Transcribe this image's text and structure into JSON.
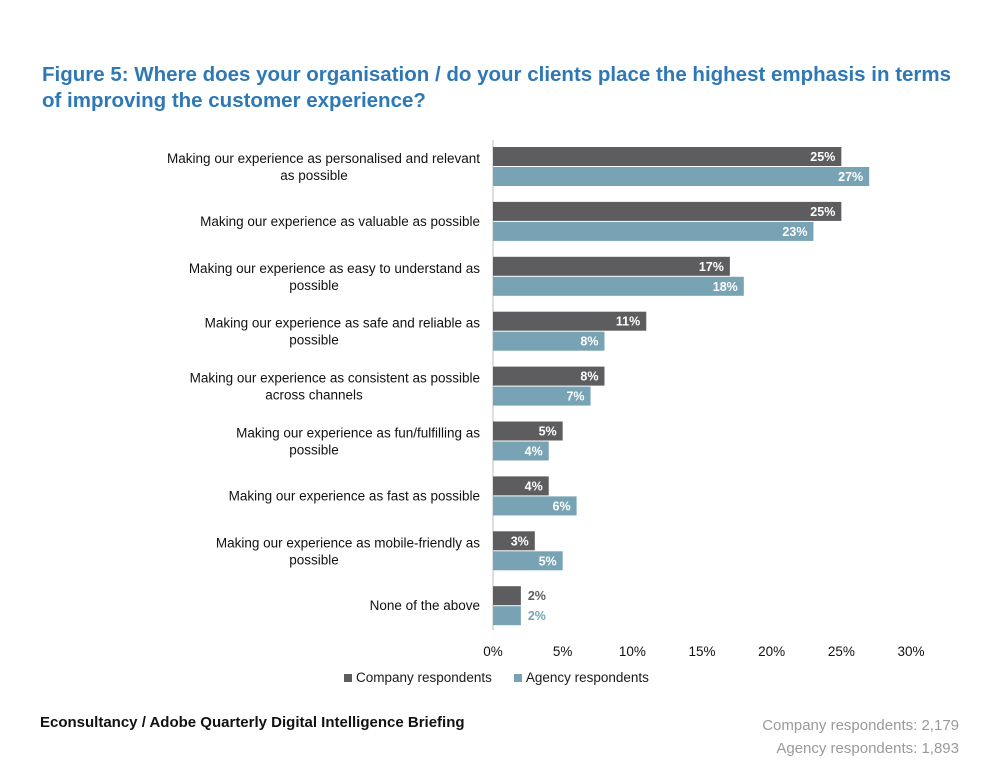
{
  "figure": {
    "title": "Figure 5: Where does your organisation / do your clients place the highest emphasis in terms of improving the customer experience?"
  },
  "colors": {
    "company": "#5d5d5f",
    "agency": "#77a3b4",
    "title": "#2e78b6",
    "counts": "#9a9a9a"
  },
  "chart_data": {
    "type": "bar",
    "orientation": "horizontal",
    "categories": [
      "Making our experience as personalised and relevant as possible",
      "Making our experience as valuable as possible",
      "Making our experience as easy to understand as possible",
      "Making our experience as safe and reliable as possible",
      "Making our experience as consistent as possible across channels",
      "Making our experience as fun/fulfilling as possible",
      "Making our experience as fast as possible",
      "Making our experience as mobile-friendly as possible",
      "None of the above"
    ],
    "series": [
      {
        "name": "Company respondents",
        "values": [
          25,
          25,
          17,
          11,
          8,
          5,
          4,
          3,
          2
        ],
        "color": "#5d5d5f"
      },
      {
        "name": "Agency respondents",
        "values": [
          27,
          23,
          18,
          8,
          7,
          4,
          6,
          5,
          2
        ],
        "color": "#77a3b4"
      }
    ],
    "x_ticks": [
      "0%",
      "5%",
      "10%",
      "15%",
      "20%",
      "25%",
      "30%"
    ],
    "xlim": [
      0,
      30
    ],
    "value_format": "%",
    "grid": false,
    "legend_position": "bottom"
  },
  "footer": {
    "source": "Econsultancy / Adobe Quarterly Digital Intelligence Briefing",
    "company_count": "Company respondents: 2,179",
    "agency_count": "Agency respondents: 1,893"
  }
}
